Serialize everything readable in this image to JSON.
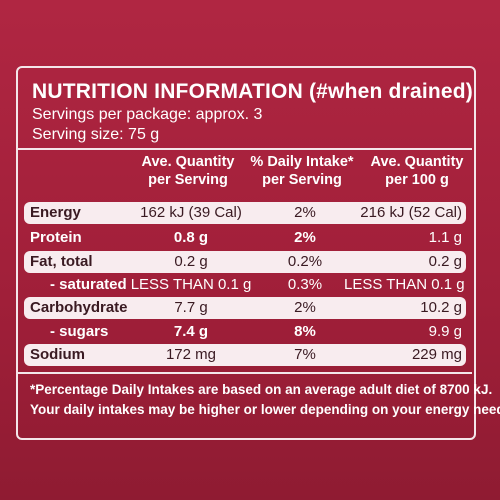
{
  "panel": {
    "title": "NUTRITION INFORMATION (#when drained)",
    "servings_per_package": "Servings per package: approx. 3",
    "serving_size": "Serving size: 75 g"
  },
  "table": {
    "headers": [
      {
        "line1": "Ave. Quantity",
        "line2": "per Serving"
      },
      {
        "line1": "% Daily Intake*",
        "line2": "per Serving"
      },
      {
        "line1": "Ave. Quantity",
        "line2": "per 100 g"
      }
    ],
    "rows": [
      {
        "name": "Energy",
        "per_serving": "162 kJ (39 Cal)",
        "daily_intake": "2%",
        "per_100g": "216 kJ (52 Cal)"
      },
      {
        "name": "Protein",
        "per_serving": "0.8 g",
        "daily_intake": "2%",
        "per_100g": "1.1 g"
      },
      {
        "name": "Fat, total",
        "per_serving": "0.2 g",
        "daily_intake": "0.2%",
        "per_100g": "0.2 g"
      },
      {
        "name": "- saturated",
        "per_serving": "LESS THAN 0.1 g",
        "daily_intake": "0.3%",
        "per_100g": "LESS THAN 0.1 g"
      },
      {
        "name": "Carbohydrate",
        "per_serving": "7.7 g",
        "daily_intake": "2%",
        "per_100g": "10.2 g"
      },
      {
        "name": "- sugars",
        "per_serving": "7.4 g",
        "daily_intake": "8%",
        "per_100g": "9.9 g"
      },
      {
        "name": "Sodium",
        "per_serving": "172 mg",
        "daily_intake": "7%",
        "per_100g": "229 mg"
      }
    ]
  },
  "footnote": {
    "line1": "*Percentage Daily Intakes are based on an average adult diet of 8700 kJ.",
    "line2": "Your daily intakes may be higher or lower depending on your energy needs."
  }
}
